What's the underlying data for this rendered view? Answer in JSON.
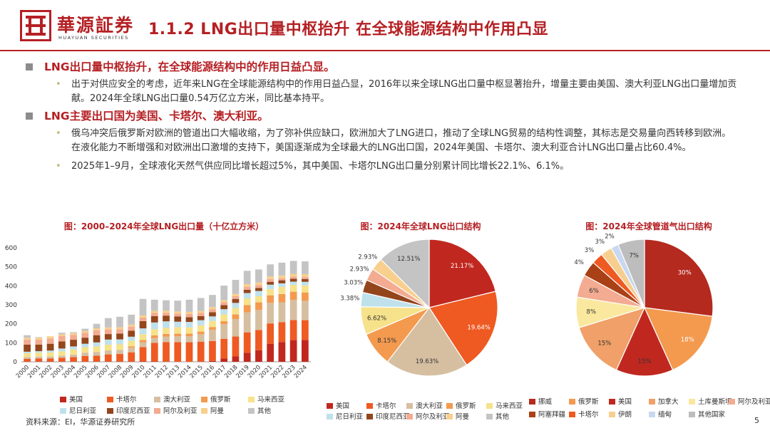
{
  "header": {
    "logo_text": "華源証券",
    "logo_sub": "HUAYUAN SECURITIES",
    "title": "1.1.2 LNG出口量中枢抬升 在全球能源结构中作用凸显"
  },
  "bullets": [
    {
      "heading": "LNG出口量中枢抬升，在全球能源结构中的作用日益凸显。",
      "subs": [
        "出于对供应安全的考虑，近年来LNG在全球能源结构中的作用日益凸显，2016年以来全球LNG出口量中枢显著抬升，增量主要由美国、澳大利亚LNG出口量增加贡献。2024年全球LNG出口量0.54万亿立方米，同比基本持平。"
      ]
    },
    {
      "heading": "LNG主要出口国为美国、卡塔尔、澳大利亚。",
      "subs": [
        "俄乌冲突后俄罗斯对欧洲的管道出口大幅收缩，为了弥补供应缺口，欧洲加大了LNG进口，推动了全球LNG贸易的结构性调整，其标志是交易量向西转移到欧洲。在液化能力不断增强和对欧洲出口激增的支持下，美国逐渐成为全球最大的LNG出口国，2024年美国、卡塔尔、澳大利亚合计LNG出口量占比60.4%。",
        "2025年1–9月，全球液化天然气供应同比增长超过5%，其中美国、卡塔尔LNG出口量分别累计同比增长22.1%、6.1%。"
      ]
    }
  ],
  "colors": {
    "美国": "#c0281f",
    "卡塔尔": "#ee5a22",
    "澳大利亚": "#d6bfa1",
    "俄罗斯": "#f39a4f",
    "马来西亚": "#f6e28a",
    "尼日利亚": "#bfe1ec",
    "印度尼西亚": "#93451c",
    "阿尔及利亚": "#f3ab91",
    "阿曼": "#f8cf8c",
    "其他": "#c4c4c4",
    "挪威": "#b42a1f",
    "加拿大": "#f0a068",
    "土库曼斯坦": "#fae89f",
    "阿塞拜疆": "#a94016",
    "伊朗": "#f6cf90",
    "缅甸": "#c8d8f0",
    "其他国家": "#bdbdbd"
  },
  "chart_data": [
    {
      "type": "bar",
      "stacked": true,
      "title": "图：2000–2024年全球LNG出口量（十亿立方米）",
      "categories": [
        "2000",
        "2001",
        "2002",
        "2003",
        "2004",
        "2005",
        "2006",
        "2007",
        "2008",
        "2009",
        "2010",
        "2011",
        "2012",
        "2013",
        "2014",
        "2015",
        "2016",
        "2017",
        "2018",
        "2019",
        "2020",
        "2021",
        "2022",
        "2023",
        "2024"
      ],
      "ylim": [
        0,
        600
      ],
      "yticks": [
        0,
        100,
        200,
        300,
        400,
        500,
        600
      ],
      "legend": [
        "美国",
        "卡塔尔",
        "澳大利亚",
        "俄罗斯",
        "马来西亚",
        "尼日利亚",
        "印度尼西亚",
        "阿尔及利亚",
        "阿曼",
        "其他"
      ],
      "series": [
        {
          "name": "美国",
          "values": [
            1,
            1,
            1,
            1,
            1,
            1,
            1,
            1,
            1,
            1,
            2,
            2,
            1,
            0,
            0,
            1,
            5,
            17,
            28,
            48,
            61,
            95,
            104,
            114,
            115
          ]
        },
        {
          "name": "卡塔尔",
          "values": [
            14,
            16,
            17,
            20,
            24,
            29,
            31,
            38,
            40,
            49,
            75,
            98,
            103,
            104,
            103,
            105,
            104,
            104,
            105,
            107,
            106,
            107,
            105,
            106,
            104
          ]
        },
        {
          "name": "澳大利亚",
          "values": [
            10,
            10,
            10,
            11,
            13,
            18,
            20,
            21,
            22,
            24,
            25,
            25,
            28,
            30,
            31,
            39,
            60,
            77,
            92,
            105,
            106,
            108,
            104,
            106,
            102
          ]
        },
        {
          "name": "俄罗斯",
          "values": [
            0,
            0,
            0,
            0,
            0,
            0,
            0,
            0,
            0,
            7,
            13,
            14,
            15,
            14,
            14,
            14,
            14,
            16,
            25,
            39,
            40,
            40,
            44,
            43,
            44
          ]
        },
        {
          "name": "马来西亚",
          "values": [
            20,
            21,
            21,
            23,
            27,
            29,
            29,
            30,
            29,
            29,
            30,
            33,
            31,
            34,
            33,
            33,
            32,
            35,
            33,
            35,
            32,
            33,
            37,
            36,
            37
          ]
        },
        {
          "name": "尼日利亚",
          "values": [
            8,
            8,
            10,
            15,
            16,
            18,
            21,
            27,
            26,
            22,
            31,
            35,
            35,
            29,
            29,
            27,
            24,
            28,
            27,
            28,
            28,
            23,
            19,
            17,
            19
          ]
        },
        {
          "name": "印度尼西亚",
          "values": [
            37,
            34,
            36,
            37,
            35,
            32,
            38,
            29,
            31,
            32,
            38,
            33,
            30,
            28,
            25,
            21,
            22,
            21,
            21,
            17,
            16,
            15,
            16,
            15,
            15
          ]
        },
        {
          "name": "阿尔及利亚",
          "values": [
            27,
            26,
            27,
            28,
            25,
            26,
            25,
            24,
            22,
            21,
            19,
            17,
            15,
            15,
            17,
            17,
            16,
            16,
            14,
            16,
            15,
            15,
            11,
            11,
            10
          ]
        },
        {
          "name": "阿曼",
          "values": [
            9,
            11,
            12,
            10,
            10,
            10,
            11,
            11,
            11,
            11,
            11,
            11,
            11,
            11,
            11,
            11,
            11,
            11,
            12,
            14,
            14,
            13,
            14,
            15,
            15
          ]
        },
        {
          "name": "其他",
          "values": [
            14,
            3,
            -23,
            8,
            5,
            11,
            24,
            49,
            55,
            52,
            87,
            59,
            55,
            57,
            64,
            68,
            64,
            76,
            74,
            70,
            68,
            64,
            68,
            68,
            68
          ]
        }
      ]
    },
    {
      "type": "pie",
      "title": "图：2024年全球LNG出口结构",
      "labels": [
        "美国",
        "卡塔尔",
        "澳大利亚",
        "俄罗斯",
        "马来西亚",
        "尼日利亚",
        "印度尼西亚",
        "阿尔及利亚",
        "阿曼",
        "其他"
      ],
      "values": [
        21.17,
        19.64,
        19.63,
        8.15,
        6.62,
        3.38,
        3.03,
        2.93,
        2.93,
        12.51
      ],
      "value_labels": [
        "21.17%",
        "19.64%",
        "19.63%",
        "8.15%",
        "6.62%",
        "3.38%",
        "3.03%",
        "2.93%",
        "2.93%",
        "12.51%"
      ]
    },
    {
      "type": "pie",
      "title": "图：2024年全球管道气出口结构",
      "labels": [
        "挪威",
        "俄罗斯",
        "美国",
        "加拿大",
        "土库曼斯坦",
        "阿尔及利亚",
        "阿塞拜疆",
        "卡塔尔",
        "伊朗",
        "缅甸",
        "其他国家"
      ],
      "values": [
        30,
        18,
        15,
        15,
        8,
        6,
        4,
        3,
        3,
        2,
        7
      ],
      "value_labels": [
        "30%",
        "18%",
        "15%",
        "15%",
        "8%",
        "6%",
        "4%",
        "3%",
        "3%",
        "2%",
        "7%"
      ]
    }
  ],
  "source": "资料来源：EI，华源证券研究所",
  "page_number": "5"
}
